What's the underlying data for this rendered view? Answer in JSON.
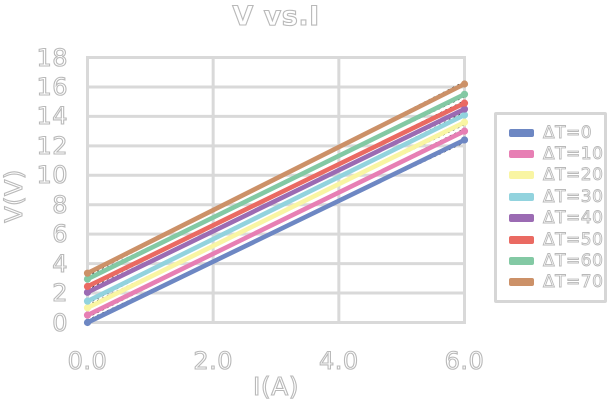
{
  "title": "V vs.I",
  "chart_data": {
    "type": "line",
    "title": "V vs.I",
    "xlabel": "I(A)",
    "ylabel": "V(V)",
    "xlim": [
      0,
      6
    ],
    "ylim": [
      0,
      18
    ],
    "x_tick_values": [
      0,
      2,
      4,
      6
    ],
    "x_tick_labels": [
      "0.0",
      "2.0",
      "4.0",
      "6.0"
    ],
    "y_tick_values": [
      0,
      2,
      4,
      6,
      8,
      10,
      12,
      14,
      16,
      18
    ],
    "y_tick_labels": [
      "0",
      "2",
      "4",
      "6",
      "8",
      "10",
      "12",
      "14",
      "16",
      "18"
    ],
    "grid": true,
    "legend_position": "right-outside",
    "marker": "circle-at-endpoints",
    "fit_line_dotted_black": true,
    "series": [
      {
        "name": "ΔT=0",
        "color": "#6d87c3",
        "x": [
          0,
          6
        ],
        "values": [
          0.0,
          12.4
        ]
      },
      {
        "name": "ΔT=10",
        "color": "#e77fb4",
        "x": [
          0,
          6
        ],
        "values": [
          0.5,
          13.0
        ]
      },
      {
        "name": "ΔT=20",
        "color": "#f9f5a3",
        "x": [
          0,
          6
        ],
        "values": [
          1.0,
          13.6
        ]
      },
      {
        "name": "ΔT=30",
        "color": "#92d3de",
        "x": [
          0,
          6
        ],
        "values": [
          1.45,
          14.1
        ]
      },
      {
        "name": "ΔT=40",
        "color": "#9b6bb3",
        "x": [
          0,
          6
        ],
        "values": [
          2.05,
          14.5
        ]
      },
      {
        "name": "ΔT=50",
        "color": "#ea6a62",
        "x": [
          0,
          6
        ],
        "values": [
          2.45,
          14.9
        ]
      },
      {
        "name": "ΔT=60",
        "color": "#83c9a4",
        "x": [
          0,
          6
        ],
        "values": [
          2.95,
          15.5
        ]
      },
      {
        "name": "ΔT=70",
        "color": "#cc9168",
        "x": [
          0,
          6
        ],
        "values": [
          3.35,
          16.2
        ]
      }
    ],
    "styles": {
      "grid_color": "#d9d9d9",
      "frame_color": "#d9d9d9",
      "fit_line_color": "#1a1a1a",
      "text_outline_color": "#b9b9b9",
      "background": "#ffffff"
    }
  }
}
